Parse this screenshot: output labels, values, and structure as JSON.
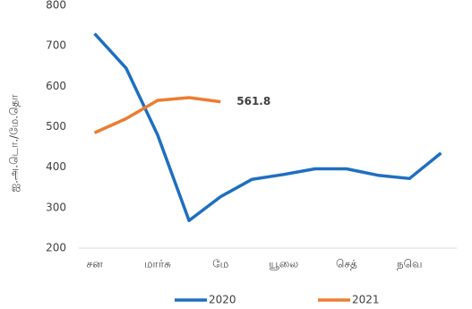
{
  "chart_data": {
    "type": "line",
    "y_label": "ஐ.அ.டொ./மே.தொ",
    "categories": [
      "சன",
      null,
      "மார்சு",
      null,
      "மே",
      null,
      "யூலை",
      null,
      "செத்",
      null,
      "நவெ",
      null
    ],
    "series": [
      {
        "name": "2020",
        "color": "#1f6fc0",
        "values": [
          730,
          645,
          480,
          268,
          327,
          370,
          382,
          396,
          396,
          380,
          372,
          435
        ]
      },
      {
        "name": "2021",
        "color": "#ed7d31",
        "values": [
          485,
          520,
          565,
          572,
          561.8,
          null,
          null,
          null,
          null,
          null,
          null,
          null
        ]
      }
    ],
    "annotations": [
      {
        "series": 1,
        "index": 4,
        "text": "561.8"
      }
    ],
    "ylim": [
      200,
      800
    ],
    "yticks": [
      200,
      300,
      400,
      500,
      600,
      700,
      800
    ],
    "grid": false,
    "legend": "bottom"
  }
}
